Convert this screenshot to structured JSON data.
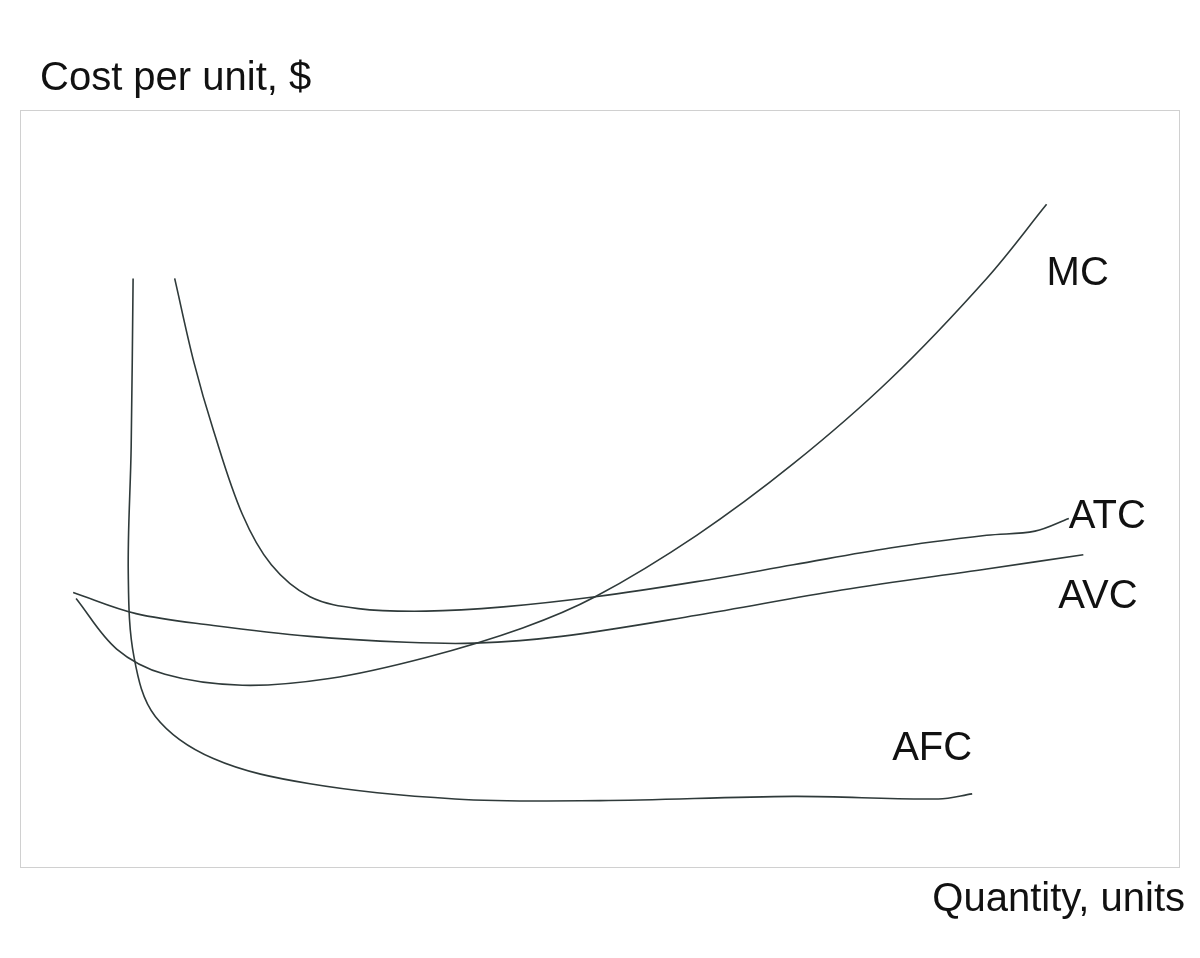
{
  "chart_data": {
    "type": "line",
    "x_label": "Quantity, units",
    "y_label": "Cost per unit, $",
    "xlim": [
      0,
      120
    ],
    "ylim": [
      0,
      90
    ],
    "grid": false,
    "tick_labels": false,
    "series": [
      {
        "name": "MC",
        "color": "#2f3a3a",
        "x": [
          5.8,
          10,
          15,
          23,
          32,
          42,
          52,
          59.5,
          70,
          80,
          90,
          100,
          106.2
        ],
        "values": [
          32,
          26,
          23,
          21.7,
          22.5,
          25,
          28.5,
          32.2,
          39.5,
          48,
          58,
          70,
          78.8
        ]
      },
      {
        "name": "ATC",
        "color": "#2f3a3a",
        "x": [
          16,
          18,
          20,
          23,
          26,
          30,
          35,
          42,
          50,
          59.5,
          70,
          80,
          90,
          100,
          105,
          108.5
        ],
        "values": [
          70,
          60,
          52,
          42,
          36,
          32.2,
          30.8,
          30.5,
          31,
          32.2,
          34,
          36,
          38,
          39.5,
          40,
          41.5
        ]
      },
      {
        "name": "AVC",
        "color": "#2f3a3a",
        "x": [
          5.5,
          12,
          20,
          30,
          40,
          47,
          56,
          70,
          85,
          100,
          110
        ],
        "values": [
          32.7,
          30.2,
          28.8,
          27.5,
          26.8,
          26.7,
          27.5,
          30,
          33,
          35.5,
          37.2
        ]
      },
      {
        "name": "AFC",
        "color": "#2f3a3a",
        "x": [
          11.7,
          11.5,
          11.2,
          11.8,
          14,
          20,
          30,
          45,
          60,
          80,
          95,
          98.5
        ],
        "values": [
          70,
          50,
          35,
          25,
          18,
          13,
          10,
          8.2,
          8,
          8.5,
          8.2,
          8.8
        ]
      }
    ]
  }
}
